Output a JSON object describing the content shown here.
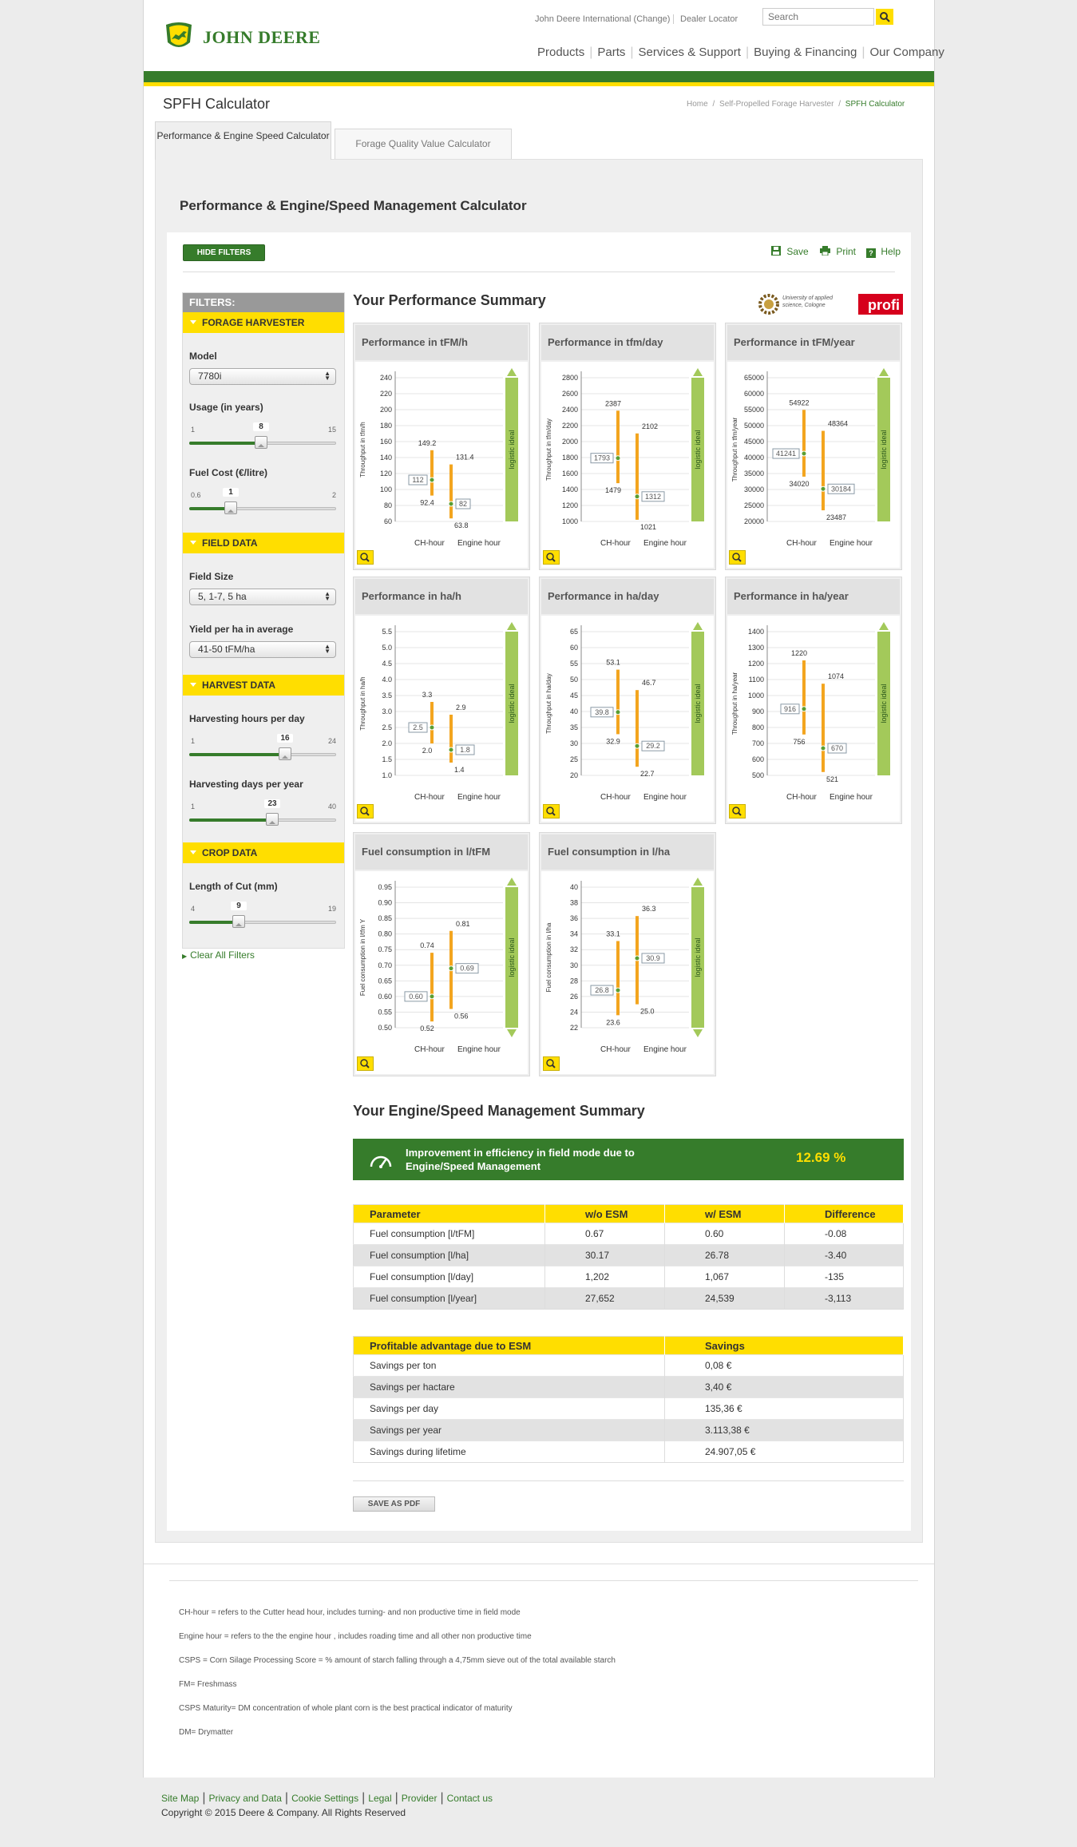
{
  "header": {
    "brand": "JOHN DEERE",
    "links": [
      "John Deere International (Change)",
      "Dealer Locator"
    ],
    "search_placeholder": "Search",
    "nav": [
      "Products",
      "Parts",
      "Services & Support",
      "Buying & Financing",
      "Our Company"
    ]
  },
  "page": {
    "title": "SPFH Calculator",
    "breadcrumb": [
      "Home",
      "Self-Propelled Forage Harvester",
      "SPFH Calculator"
    ],
    "tabs": [
      "Performance & Engine Speed Calculator",
      "Forage Quality Value Calculator"
    ],
    "heading": "Performance & Engine/Speed Management Calculator",
    "hide_filters": "HIDE FILTERS",
    "save": "Save",
    "print": "Print",
    "help": "Help"
  },
  "filters": {
    "title": "FILTERS:",
    "sections": {
      "forage": "FORAGE HARVESTER",
      "field": "FIELD DATA",
      "harvest": "HARVEST DATA",
      "crop": "CROP DATA"
    },
    "model_label": "Model",
    "model_value": "7780i",
    "usage_label": "Usage (in years)",
    "usage": {
      "min": "1",
      "max": "15",
      "value": "8"
    },
    "fuel_label": "Fuel Cost (€/litre)",
    "fuel": {
      "min": "0.6",
      "max": "2",
      "value": "1"
    },
    "fieldsize_label": "Field Size",
    "fieldsize_value": "5, 1-7, 5 ha",
    "yield_label": "Yield per ha in average",
    "yield_value": "41-50 tFM/ha",
    "hours_label": "Harvesting hours per day",
    "hours": {
      "min": "1",
      "max": "24",
      "value": "16"
    },
    "days_label": "Harvesting days per year",
    "days": {
      "min": "1",
      "max": "40",
      "value": "23"
    },
    "cut_label": "Length of Cut (mm)",
    "cut": {
      "min": "4",
      "max": "19",
      "value": "9"
    },
    "clear": "Clear All Filters"
  },
  "summary": {
    "title": "Your Performance Summary",
    "uni_logo": "University of applied science, Cologne",
    "profi_logo": "profi",
    "x_labels": [
      "CH-hour",
      "Engine hour"
    ],
    "ideal_label": "logistic ideal"
  },
  "chart_data": [
    {
      "type": "range",
      "title": "Performance in tFM/h",
      "ylabel": "Throughput in tfm/h",
      "ylim": [
        60,
        240
      ],
      "ticks": [
        60,
        80,
        100,
        120,
        140,
        160,
        180,
        200,
        220,
        240
      ],
      "ch": {
        "max": 149.2,
        "value": 112.0,
        "min": 92.4
      },
      "engine": {
        "max": 131.4,
        "value": 82.0,
        "min": 63.8
      }
    },
    {
      "type": "range",
      "title": "Performance in tfm/day",
      "ylabel": "Throughput in tfm/day",
      "ylim": [
        1000,
        2800
      ],
      "ticks": [
        1000,
        1200,
        1400,
        1600,
        1800,
        2000,
        2200,
        2400,
        2600,
        2800
      ],
      "ch": {
        "max": 2387,
        "value": 1793,
        "min": 1479
      },
      "engine": {
        "max": 2102,
        "value": 1312,
        "min": 1021
      }
    },
    {
      "type": "range",
      "title": "Performance in tFM/year",
      "ylabel": "Throughput in tfm/year",
      "ylim": [
        20000,
        65000
      ],
      "ticks": [
        20000,
        25000,
        30000,
        35000,
        40000,
        45000,
        50000,
        55000,
        60000,
        65000
      ],
      "ch": {
        "max": 54922,
        "value": 41241,
        "min": 34020
      },
      "engine": {
        "max": 48364,
        "value": 30184,
        "min": 23487
      }
    },
    {
      "type": "range",
      "title": "Performance in ha/h",
      "ylabel": "Throughput in ha/h",
      "ylim": [
        1.0,
        5.5
      ],
      "ticks": [
        "1.0",
        "1.5",
        "2.0",
        "2.5",
        "3.0",
        "3.5",
        "4.0",
        "4.5",
        "5.0",
        "5.5"
      ],
      "ch": {
        "max": "3.3",
        "value": "2.5",
        "min": "2.0"
      },
      "engine": {
        "max": "2.9",
        "value": "1.8",
        "min": "1.4"
      }
    },
    {
      "type": "range",
      "title": "Performance in ha/day",
      "ylabel": "Throughput in ha/day",
      "ylim": [
        20,
        65
      ],
      "ticks": [
        20,
        25,
        30,
        35,
        40,
        45,
        50,
        55,
        60,
        65
      ],
      "ch": {
        "max": 53.1,
        "value": 39.8,
        "min": 32.9
      },
      "engine": {
        "max": 46.7,
        "value": 29.2,
        "min": 22.7
      }
    },
    {
      "type": "range",
      "title": "Performance in ha/year",
      "ylabel": "Throughput in ha/year",
      "ylim": [
        500,
        1400
      ],
      "ticks": [
        500,
        600,
        700,
        800,
        900,
        1000,
        1100,
        1200,
        1300,
        1400
      ],
      "ch": {
        "max": 1220,
        "value": 916,
        "min": 756
      },
      "engine": {
        "max": 1074,
        "value": 670,
        "min": 521
      }
    },
    {
      "type": "range",
      "title": "Fuel consumption in l/tFM",
      "ylabel": "Fuel consumption in l/tfm Y",
      "ylim": [
        0.5,
        0.95
      ],
      "ticks": [
        "0.50",
        "0.55",
        "0.60",
        "0.65",
        "0.70",
        "0.75",
        "0.80",
        "0.85",
        "0.90",
        "0.95"
      ],
      "ch": {
        "max": "0.74",
        "value": "0.60",
        "min": "0.52"
      },
      "engine": {
        "max": "0.81",
        "value": "0.69",
        "min": "0.56"
      }
    },
    {
      "type": "range",
      "title": "Fuel consumption in l/ha",
      "ylabel": "Fuel consumption in l/ha",
      "ylim": [
        22,
        40
      ],
      "ticks": [
        22,
        24,
        26,
        28,
        30,
        32,
        34,
        36,
        38,
        40
      ],
      "ch": {
        "max": "33.1",
        "value": "26.8",
        "min": "23.6"
      },
      "engine": {
        "max": "36.3",
        "value": "30.9",
        "min": "25.0"
      }
    }
  ],
  "esm": {
    "title": "Your Engine/Speed Management Summary",
    "banner_text": "Improvement in efficiency in field mode due to Engine/Speed Management",
    "banner_value": "12.69 %",
    "table": {
      "headers": [
        "Parameter",
        "w/o ESM",
        "w/ ESM",
        "Difference"
      ],
      "rows": [
        [
          "Fuel consumption [l/tFM]",
          "0.67",
          "0.60",
          "-0.08"
        ],
        [
          "Fuel consumption [l/ha]",
          "30.17",
          "26.78",
          "-3.40"
        ],
        [
          "Fuel consumption [l/day]",
          "1,202",
          "1,067",
          "-135"
        ],
        [
          "Fuel consumption [l/year]",
          "27,652",
          "24,539",
          "-3,113"
        ]
      ]
    },
    "savings": {
      "headers": [
        "Profitable advantage due to ESM",
        "Savings"
      ],
      "rows": [
        [
          "Savings per ton",
          "0,08 €"
        ],
        [
          "Savings per hactare",
          "3,40 €"
        ],
        [
          "Savings per day",
          "135,36 €"
        ],
        [
          "Savings per year",
          "3.113,38 €"
        ],
        [
          "Savings during lifetime",
          "24.907,05 €"
        ]
      ]
    },
    "pdf_button": "SAVE AS PDF"
  },
  "notes": [
    "CH-hour = refers to the Cutter head hour, includes  turning- and non productive time in field mode",
    "Engine hour = refers to the the engine hour , includes roading time and all other non productive time",
    "CSPS = Corn Silage Processing Score = % amount of starch falling through a 4,75mm sieve out of the total available starch",
    "FM= Freshmass",
    "CSPS Maturity= DM concentration of whole plant corn is the best practical indicator of maturity",
    "DM= Drymatter"
  ],
  "footer": {
    "links": [
      "Site Map",
      "Privacy and Data",
      "Cookie Settings",
      "Legal",
      "Provider",
      "Contact us"
    ],
    "copyright": "Copyright © 2015 Deere & Company. All Rights Reserved"
  }
}
